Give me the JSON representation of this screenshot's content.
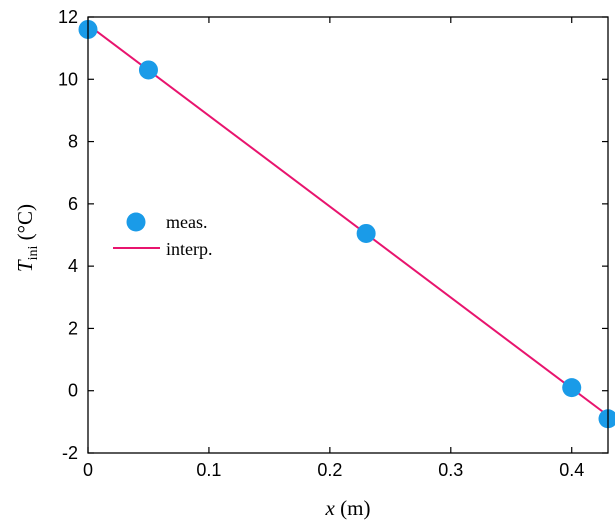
{
  "chart_data": {
    "type": "scatter",
    "xlabel": {
      "var": "x",
      "unit": " (m)"
    },
    "ylabel": {
      "var": "T",
      "sub": "ini",
      "unit": " (°C)"
    },
    "xlim": [
      0,
      0.43
    ],
    "ylim": [
      -2,
      12
    ],
    "xticks": [
      0,
      0.1,
      0.2,
      0.3,
      0.4
    ],
    "xtick_labels": [
      "0",
      "0.1",
      "0.2",
      "0.3",
      "0.4"
    ],
    "yticks": [
      -2,
      0,
      2,
      4,
      6,
      8,
      10,
      12
    ],
    "ytick_labels": [
      "-2",
      "0",
      "2",
      "4",
      "6",
      "8",
      "10",
      "12"
    ],
    "grid": false,
    "legend_position": "middle-left",
    "series": [
      {
        "name": "meas.",
        "kind": "markers",
        "color": "#1a9be8",
        "x": [
          0,
          0.05,
          0.23,
          0.4,
          0.43
        ],
        "y": [
          11.6,
          10.3,
          5.05,
          0.1,
          -0.9
        ]
      },
      {
        "name": "interp.",
        "kind": "line",
        "color": "#e8146e",
        "x": [
          0,
          0.43
        ],
        "y": [
          11.75,
          -0.8
        ]
      }
    ]
  }
}
